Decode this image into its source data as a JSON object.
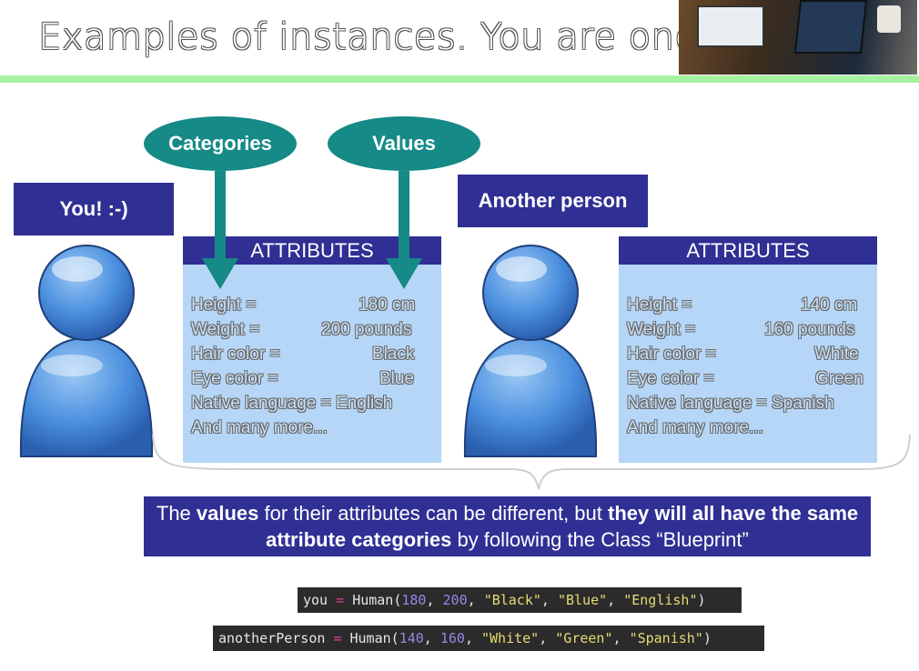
{
  "title": "Examples of instances. You are one!",
  "photo_icon": "laptop-photo",
  "ellipses": {
    "categories": "Categories",
    "values": "Values"
  },
  "person1": {
    "label": "You! :-)",
    "icon": "person-icon",
    "attributes": {
      "header": "ATTRIBUTES",
      "rows": [
        {
          "key": "Height =",
          "value": "180 cm"
        },
        {
          "key": "Weight =",
          "value": "200 pounds"
        },
        {
          "key": "Hair color =",
          "value": "Black"
        },
        {
          "key": "Eye color =",
          "value": "Blue"
        },
        {
          "key": "Native language = English",
          "value": ""
        }
      ],
      "more": "And many more..."
    }
  },
  "person2": {
    "label": "Another person",
    "icon": "person-icon",
    "attributes": {
      "header": "ATTRIBUTES",
      "rows": [
        {
          "key": "Height =",
          "value": "140 cm"
        },
        {
          "key": "Weight =",
          "value": "160 pounds"
        },
        {
          "key": "Hair color =",
          "value": "White"
        },
        {
          "key": "Eye color =",
          "value": "Green"
        },
        {
          "key": "Native language = Spanish",
          "value": ""
        }
      ],
      "more": "And many more..."
    }
  },
  "message": {
    "p1": "The ",
    "b1": "values",
    "p2": " for their attributes can be different, but ",
    "b2": "they will all have the same attribute categories",
    "p3": " by following the Class “Blueprint”"
  },
  "code": {
    "line1": {
      "var": "you",
      "op": " = ",
      "fn": "Human(",
      "n1": "180",
      "s1": ", ",
      "n2": "200",
      "s2": ", ",
      "a": "\"Black\"",
      "s3": ", ",
      "b": "\"Blue\"",
      "s4": ", ",
      "c": "\"English\"",
      "end": ")"
    },
    "line2": {
      "var": "anotherPerson",
      "op": " = ",
      "fn": "Human(",
      "n1": "140",
      "s1": ", ",
      "n2": "160",
      "s2": ", ",
      "a": "\"White\"",
      "s3": ", ",
      "b": "\"Green\"",
      "s4": ", ",
      "c": "\"Spanish\"",
      "end": ")"
    }
  },
  "colors": {
    "accent_green": "#a6f2a0",
    "box_blue": "#2f2f94",
    "teal": "#158a86",
    "attr_bg": "#b5d6f7"
  }
}
